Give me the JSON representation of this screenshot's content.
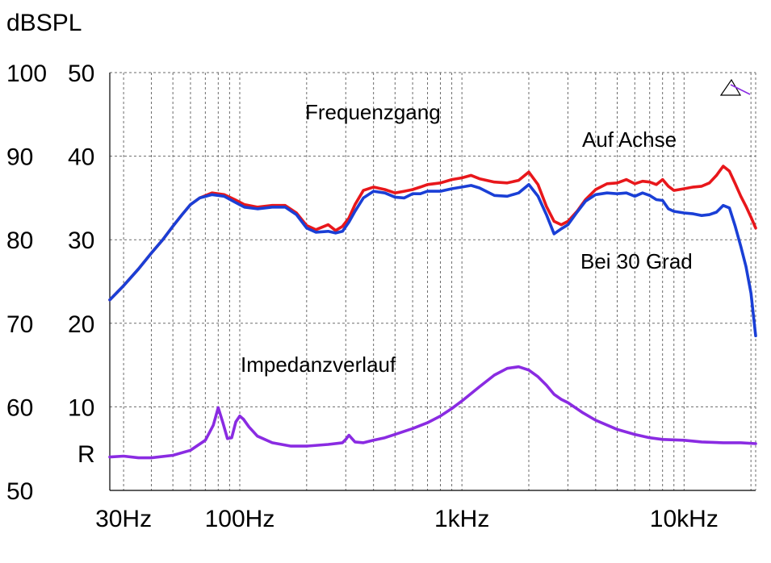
{
  "chart_data": {
    "type": "line",
    "unit_label": "dBSPL",
    "impedance_label": "R",
    "x_scale": "log",
    "xlim": [
      26,
      21000
    ],
    "x_ticks": [
      {
        "value": 30,
        "label": "30Hz"
      },
      {
        "value": 100,
        "label": "100Hz"
      },
      {
        "value": 1000,
        "label": "1kHz"
      },
      {
        "value": 10000,
        "label": "10kHz"
      }
    ],
    "y_spl_ticks": [
      "100",
      "90",
      "80",
      "70",
      "60",
      "50"
    ],
    "y_imp_ticks": [
      "50",
      "40",
      "30",
      "20",
      "10"
    ],
    "ylim_spl": [
      50,
      100
    ],
    "grid": true,
    "annotations": {
      "frequency_response": "Frequenzgang",
      "on_axis": "Auf Achse",
      "off_axis": "Bei 30 Grad",
      "impedance": "Impedanzverlauf"
    },
    "series": [
      {
        "name": "Auf Achse",
        "color": "#e8171b",
        "axis": "spl",
        "points": [
          [
            26,
            72.8
          ],
          [
            30,
            74.5
          ],
          [
            35,
            76.5
          ],
          [
            40,
            78.4
          ],
          [
            45,
            80
          ],
          [
            50,
            81.6
          ],
          [
            55,
            83
          ],
          [
            60,
            84.2
          ],
          [
            66,
            85
          ],
          [
            75,
            85.6
          ],
          [
            85,
            85.4
          ],
          [
            95,
            84.8
          ],
          [
            105,
            84.2
          ],
          [
            120,
            83.9
          ],
          [
            140,
            84.1
          ],
          [
            160,
            84.1
          ],
          [
            180,
            83.2
          ],
          [
            200,
            81.7
          ],
          [
            220,
            81.2
          ],
          [
            250,
            81.8
          ],
          [
            270,
            81.1
          ],
          [
            290,
            81.6
          ],
          [
            310,
            82.6
          ],
          [
            330,
            84.2
          ],
          [
            360,
            85.9
          ],
          [
            400,
            86.3
          ],
          [
            450,
            86
          ],
          [
            500,
            85.6
          ],
          [
            550,
            85.8
          ],
          [
            600,
            86
          ],
          [
            650,
            86.3
          ],
          [
            700,
            86.6
          ],
          [
            800,
            86.8
          ],
          [
            900,
            87.2
          ],
          [
            1000,
            87.4
          ],
          [
            1100,
            87.7
          ],
          [
            1200,
            87.3
          ],
          [
            1400,
            86.9
          ],
          [
            1600,
            86.8
          ],
          [
            1800,
            87.1
          ],
          [
            2000,
            88.1
          ],
          [
            2200,
            86.6
          ],
          [
            2400,
            84
          ],
          [
            2600,
            82.2
          ],
          [
            2800,
            81.8
          ],
          [
            3000,
            82.2
          ],
          [
            3300,
            83.4
          ],
          [
            3600,
            84.8
          ],
          [
            4000,
            86
          ],
          [
            4500,
            86.7
          ],
          [
            5000,
            86.8
          ],
          [
            5500,
            87.2
          ],
          [
            6000,
            86.7
          ],
          [
            6500,
            87
          ],
          [
            7000,
            86.9
          ],
          [
            7500,
            86.6
          ],
          [
            8000,
            87.2
          ],
          [
            8500,
            86.4
          ],
          [
            9000,
            85.9
          ],
          [
            10000,
            86.1
          ],
          [
            11000,
            86.3
          ],
          [
            12000,
            86.4
          ],
          [
            13000,
            86.8
          ],
          [
            14000,
            87.7
          ],
          [
            15000,
            88.8
          ],
          [
            16000,
            88.2
          ],
          [
            17000,
            86.7
          ],
          [
            18000,
            85.2
          ],
          [
            19000,
            84
          ],
          [
            20000,
            82.7
          ],
          [
            21000,
            81.4
          ]
        ]
      },
      {
        "name": "Bei 30 Grad",
        "color": "#1a3fd6",
        "axis": "spl",
        "points": [
          [
            26,
            72.8
          ],
          [
            30,
            74.5
          ],
          [
            35,
            76.5
          ],
          [
            40,
            78.4
          ],
          [
            45,
            80
          ],
          [
            50,
            81.6
          ],
          [
            55,
            83
          ],
          [
            60,
            84.2
          ],
          [
            66,
            85
          ],
          [
            75,
            85.4
          ],
          [
            85,
            85.2
          ],
          [
            95,
            84.5
          ],
          [
            105,
            83.9
          ],
          [
            120,
            83.7
          ],
          [
            140,
            83.9
          ],
          [
            160,
            83.9
          ],
          [
            180,
            83
          ],
          [
            200,
            81.4
          ],
          [
            220,
            80.9
          ],
          [
            250,
            81
          ],
          [
            270,
            80.8
          ],
          [
            290,
            81
          ],
          [
            310,
            82.1
          ],
          [
            330,
            83.4
          ],
          [
            360,
            85
          ],
          [
            400,
            85.8
          ],
          [
            450,
            85.6
          ],
          [
            500,
            85.1
          ],
          [
            550,
            85
          ],
          [
            600,
            85.5
          ],
          [
            650,
            85.5
          ],
          [
            700,
            85.8
          ],
          [
            800,
            85.8
          ],
          [
            900,
            86.1
          ],
          [
            1000,
            86.3
          ],
          [
            1100,
            86.5
          ],
          [
            1200,
            86.2
          ],
          [
            1400,
            85.3
          ],
          [
            1600,
            85.2
          ],
          [
            1800,
            85.6
          ],
          [
            2000,
            86.6
          ],
          [
            2200,
            85.2
          ],
          [
            2400,
            83
          ],
          [
            2600,
            80.7
          ],
          [
            2800,
            81.3
          ],
          [
            3000,
            81.8
          ],
          [
            3300,
            83.3
          ],
          [
            3600,
            84.6
          ],
          [
            4000,
            85.4
          ],
          [
            4500,
            85.6
          ],
          [
            5000,
            85.5
          ],
          [
            5500,
            85.6
          ],
          [
            6000,
            85.2
          ],
          [
            6500,
            85.6
          ],
          [
            7000,
            85.3
          ],
          [
            7500,
            84.8
          ],
          [
            8000,
            84.7
          ],
          [
            8500,
            83.7
          ],
          [
            9000,
            83.4
          ],
          [
            10000,
            83.2
          ],
          [
            11000,
            83.1
          ],
          [
            12000,
            82.9
          ],
          [
            13000,
            83
          ],
          [
            14000,
            83.3
          ],
          [
            15000,
            84.1
          ],
          [
            16000,
            83.8
          ],
          [
            17000,
            81.6
          ],
          [
            18000,
            79.2
          ],
          [
            19000,
            76.8
          ],
          [
            20000,
            73.6
          ],
          [
            21000,
            68.5
          ]
        ]
      },
      {
        "name": "Impedanzverlauf",
        "color": "#8a2be2",
        "axis": "spl",
        "points": [
          [
            26,
            54
          ],
          [
            30,
            54.1
          ],
          [
            35,
            53.9
          ],
          [
            40,
            53.9
          ],
          [
            50,
            54.2
          ],
          [
            60,
            54.8
          ],
          [
            70,
            56
          ],
          [
            76,
            57.8
          ],
          [
            80,
            59.9
          ],
          [
            84,
            58.1
          ],
          [
            88,
            56.2
          ],
          [
            92,
            56.3
          ],
          [
            96,
            58.2
          ],
          [
            100,
            58.9
          ],
          [
            104,
            58.5
          ],
          [
            110,
            57.6
          ],
          [
            120,
            56.5
          ],
          [
            140,
            55.7
          ],
          [
            170,
            55.3
          ],
          [
            200,
            55.3
          ],
          [
            250,
            55.5
          ],
          [
            290,
            55.7
          ],
          [
            300,
            56.1
          ],
          [
            310,
            56.6
          ],
          [
            320,
            56.2
          ],
          [
            330,
            55.8
          ],
          [
            360,
            55.7
          ],
          [
            400,
            56
          ],
          [
            450,
            56.3
          ],
          [
            500,
            56.7
          ],
          [
            600,
            57.4
          ],
          [
            700,
            58.1
          ],
          [
            800,
            58.9
          ],
          [
            900,
            59.8
          ],
          [
            1000,
            60.7
          ],
          [
            1200,
            62.4
          ],
          [
            1400,
            63.8
          ],
          [
            1600,
            64.6
          ],
          [
            1800,
            64.8
          ],
          [
            2000,
            64.4
          ],
          [
            2200,
            63.6
          ],
          [
            2400,
            62.6
          ],
          [
            2600,
            61.5
          ],
          [
            2800,
            60.9
          ],
          [
            3000,
            60.5
          ],
          [
            3500,
            59.3
          ],
          [
            4000,
            58.4
          ],
          [
            5000,
            57.3
          ],
          [
            6000,
            56.7
          ],
          [
            7000,
            56.3
          ],
          [
            8000,
            56.1
          ],
          [
            10000,
            56
          ],
          [
            12000,
            55.8
          ],
          [
            15000,
            55.7
          ],
          [
            18000,
            55.7
          ],
          [
            21000,
            55.6
          ]
        ]
      }
    ]
  }
}
